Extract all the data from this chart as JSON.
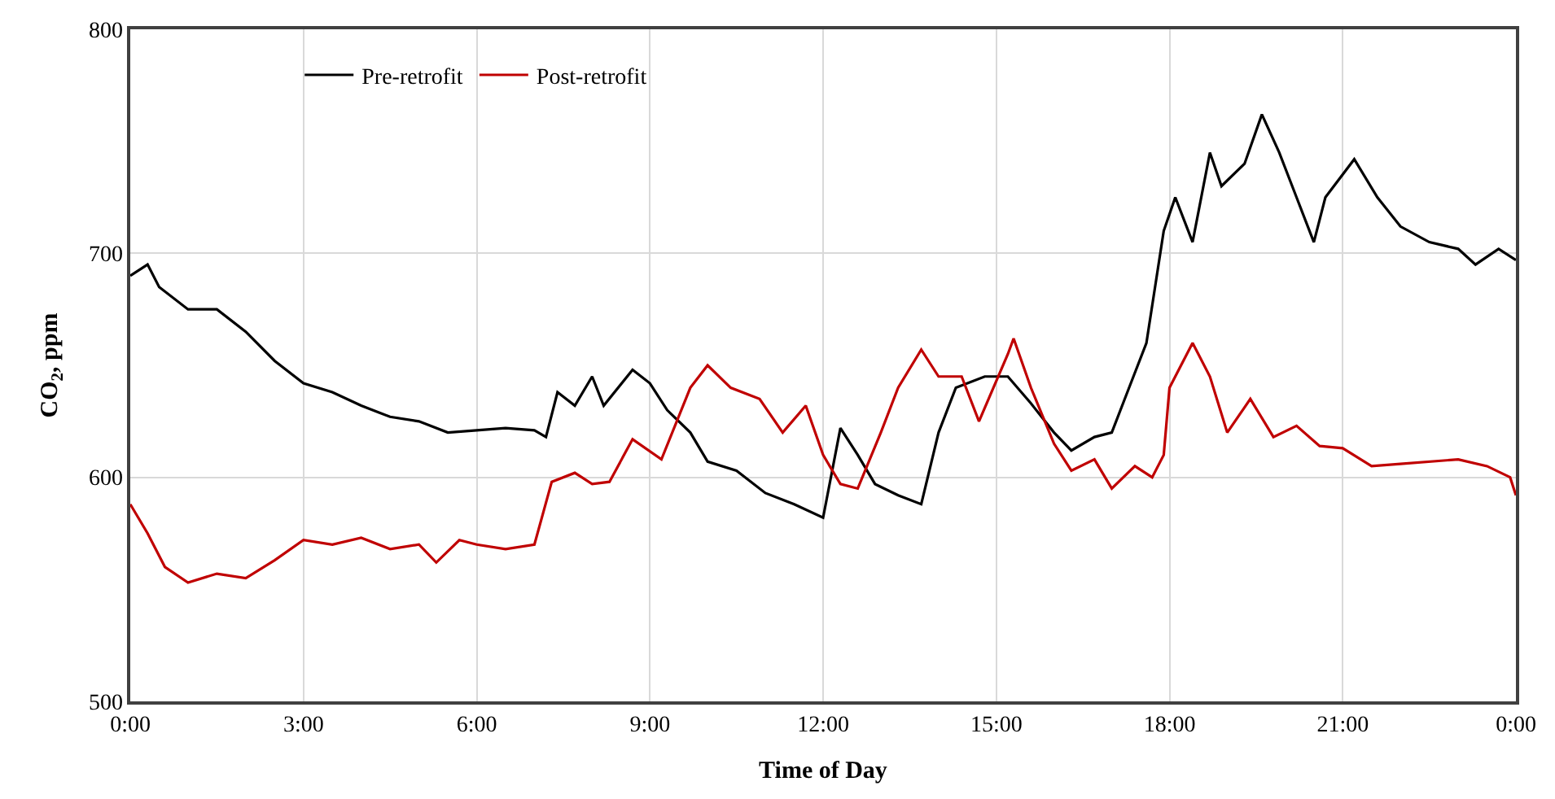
{
  "chart_data": {
    "type": "line",
    "xlabel": "Time of Day",
    "ylabel": "CO$_{2}$, ppm",
    "xlim": [
      0,
      24
    ],
    "xticks": [
      {
        "value": 0,
        "label": "0:00"
      },
      {
        "value": 3,
        "label": "3:00"
      },
      {
        "value": 6,
        "label": "6:00"
      },
      {
        "value": 9,
        "label": "9:00"
      },
      {
        "value": 12,
        "label": "12:00"
      },
      {
        "value": 15,
        "label": "15:00"
      },
      {
        "value": 18,
        "label": "18:00"
      },
      {
        "value": 21,
        "label": "21:00"
      },
      {
        "value": 24,
        "label": "0:00"
      }
    ],
    "ylim": [
      500,
      800
    ],
    "yticks": [
      500,
      600,
      700,
      800
    ],
    "grid": true,
    "legend": "top left",
    "marker": "none",
    "line_style": "solid",
    "series": [
      {
        "name": "Pre-retrofit",
        "color": "#000000",
        "x": [
          0,
          0.3,
          0.5,
          1.0,
          1.5,
          2.0,
          2.5,
          3.0,
          3.5,
          4.0,
          4.5,
          5.0,
          5.5,
          6.0,
          6.5,
          7.0,
          7.2,
          7.4,
          7.7,
          8.0,
          8.2,
          8.7,
          9.0,
          9.3,
          9.7,
          10.0,
          10.5,
          11.0,
          11.5,
          12.0,
          12.3,
          12.6,
          12.9,
          13.3,
          13.7,
          14.0,
          14.3,
          14.8,
          15.2,
          15.6,
          16.0,
          16.3,
          16.7,
          17.0,
          17.3,
          17.6,
          17.9,
          18.1,
          18.4,
          18.7,
          18.9,
          19.3,
          19.6,
          19.9,
          20.2,
          20.5,
          20.7,
          21.2,
          21.6,
          22.0,
          22.5,
          23.0,
          23.3,
          23.7,
          24.0
        ],
        "values": [
          690,
          695,
          685,
          675,
          675,
          665,
          652,
          642,
          638,
          632,
          627,
          625,
          620,
          621,
          622,
          621,
          618,
          638,
          632,
          645,
          632,
          648,
          642,
          630,
          620,
          607,
          603,
          593,
          588,
          582,
          622,
          610,
          597,
          592,
          588,
          620,
          640,
          645,
          645,
          633,
          620,
          612,
          618,
          620,
          640,
          660,
          710,
          725,
          705,
          745,
          730,
          740,
          762,
          745,
          725,
          705,
          725,
          742,
          725,
          712,
          705,
          702,
          695,
          702,
          697
        ]
      },
      {
        "name": "Post-retrofit",
        "color": "#c00000",
        "x": [
          0,
          0.3,
          0.6,
          1.0,
          1.5,
          2.0,
          2.5,
          3.0,
          3.5,
          4.0,
          4.5,
          5.0,
          5.3,
          5.7,
          6.0,
          6.5,
          7.0,
          7.3,
          7.7,
          8.0,
          8.3,
          8.7,
          9.2,
          9.7,
          10.0,
          10.4,
          10.9,
          11.3,
          11.7,
          12.0,
          12.3,
          12.6,
          13.0,
          13.3,
          13.7,
          14.0,
          14.4,
          14.7,
          15.2,
          15.3,
          15.6,
          16.0,
          16.3,
          16.7,
          17.0,
          17.4,
          17.7,
          17.9,
          18.0,
          18.4,
          18.7,
          19.0,
          19.4,
          19.8,
          20.2,
          20.6,
          21.0,
          21.5,
          22.0,
          23.0,
          23.5,
          23.9,
          24.0
        ],
        "values": [
          588,
          575,
          560,
          553,
          557,
          555,
          563,
          572,
          570,
          573,
          568,
          570,
          562,
          572,
          570,
          568,
          570,
          598,
          602,
          597,
          598,
          617,
          608,
          640,
          650,
          640,
          635,
          620,
          632,
          610,
          597,
          595,
          620,
          640,
          657,
          645,
          645,
          625,
          655,
          662,
          640,
          615,
          603,
          608,
          595,
          605,
          600,
          610,
          640,
          660,
          645,
          620,
          635,
          618,
          623,
          614,
          613,
          605,
          606,
          608,
          605,
          600,
          592
        ]
      }
    ]
  }
}
